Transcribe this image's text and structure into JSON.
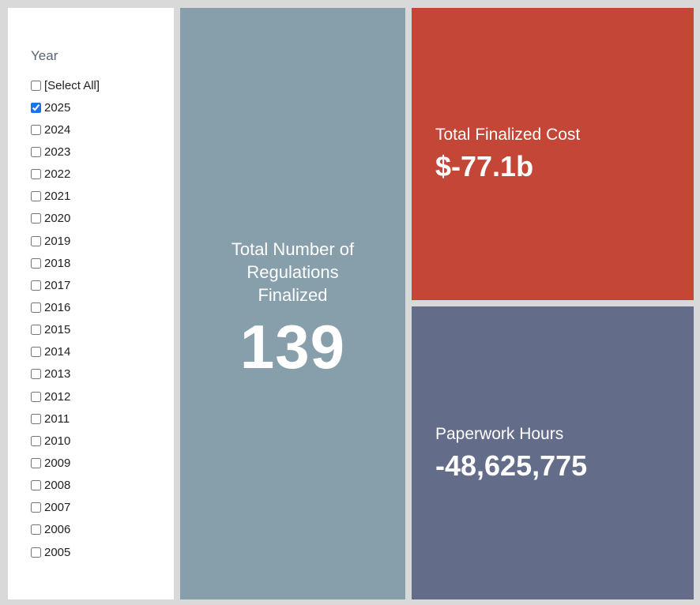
{
  "filter": {
    "title": "Year",
    "options": [
      {
        "label": "[Select All]",
        "checked": false
      },
      {
        "label": "2025",
        "checked": true
      },
      {
        "label": "2024",
        "checked": false
      },
      {
        "label": "2023",
        "checked": false
      },
      {
        "label": "2022",
        "checked": false
      },
      {
        "label": "2021",
        "checked": false
      },
      {
        "label": "2020",
        "checked": false
      },
      {
        "label": "2019",
        "checked": false
      },
      {
        "label": "2018",
        "checked": false
      },
      {
        "label": "2017",
        "checked": false
      },
      {
        "label": "2016",
        "checked": false
      },
      {
        "label": "2015",
        "checked": false
      },
      {
        "label": "2014",
        "checked": false
      },
      {
        "label": "2013",
        "checked": false
      },
      {
        "label": "2012",
        "checked": false
      },
      {
        "label": "2011",
        "checked": false
      },
      {
        "label": "2010",
        "checked": false
      },
      {
        "label": "2009",
        "checked": false
      },
      {
        "label": "2008",
        "checked": false
      },
      {
        "label": "2007",
        "checked": false
      },
      {
        "label": "2006",
        "checked": false
      },
      {
        "label": "2005",
        "checked": false
      }
    ]
  },
  "tiles": {
    "count": {
      "label": "Total Number of Regulations Finalized",
      "value": "139",
      "color": "#879eab"
    },
    "cost": {
      "label": "Total Finalized Cost",
      "value": "$-77.1b",
      "color": "#c44637"
    },
    "hours": {
      "label": "Paperwork Hours",
      "value": "-48,625,775",
      "color": "#636c88"
    }
  }
}
